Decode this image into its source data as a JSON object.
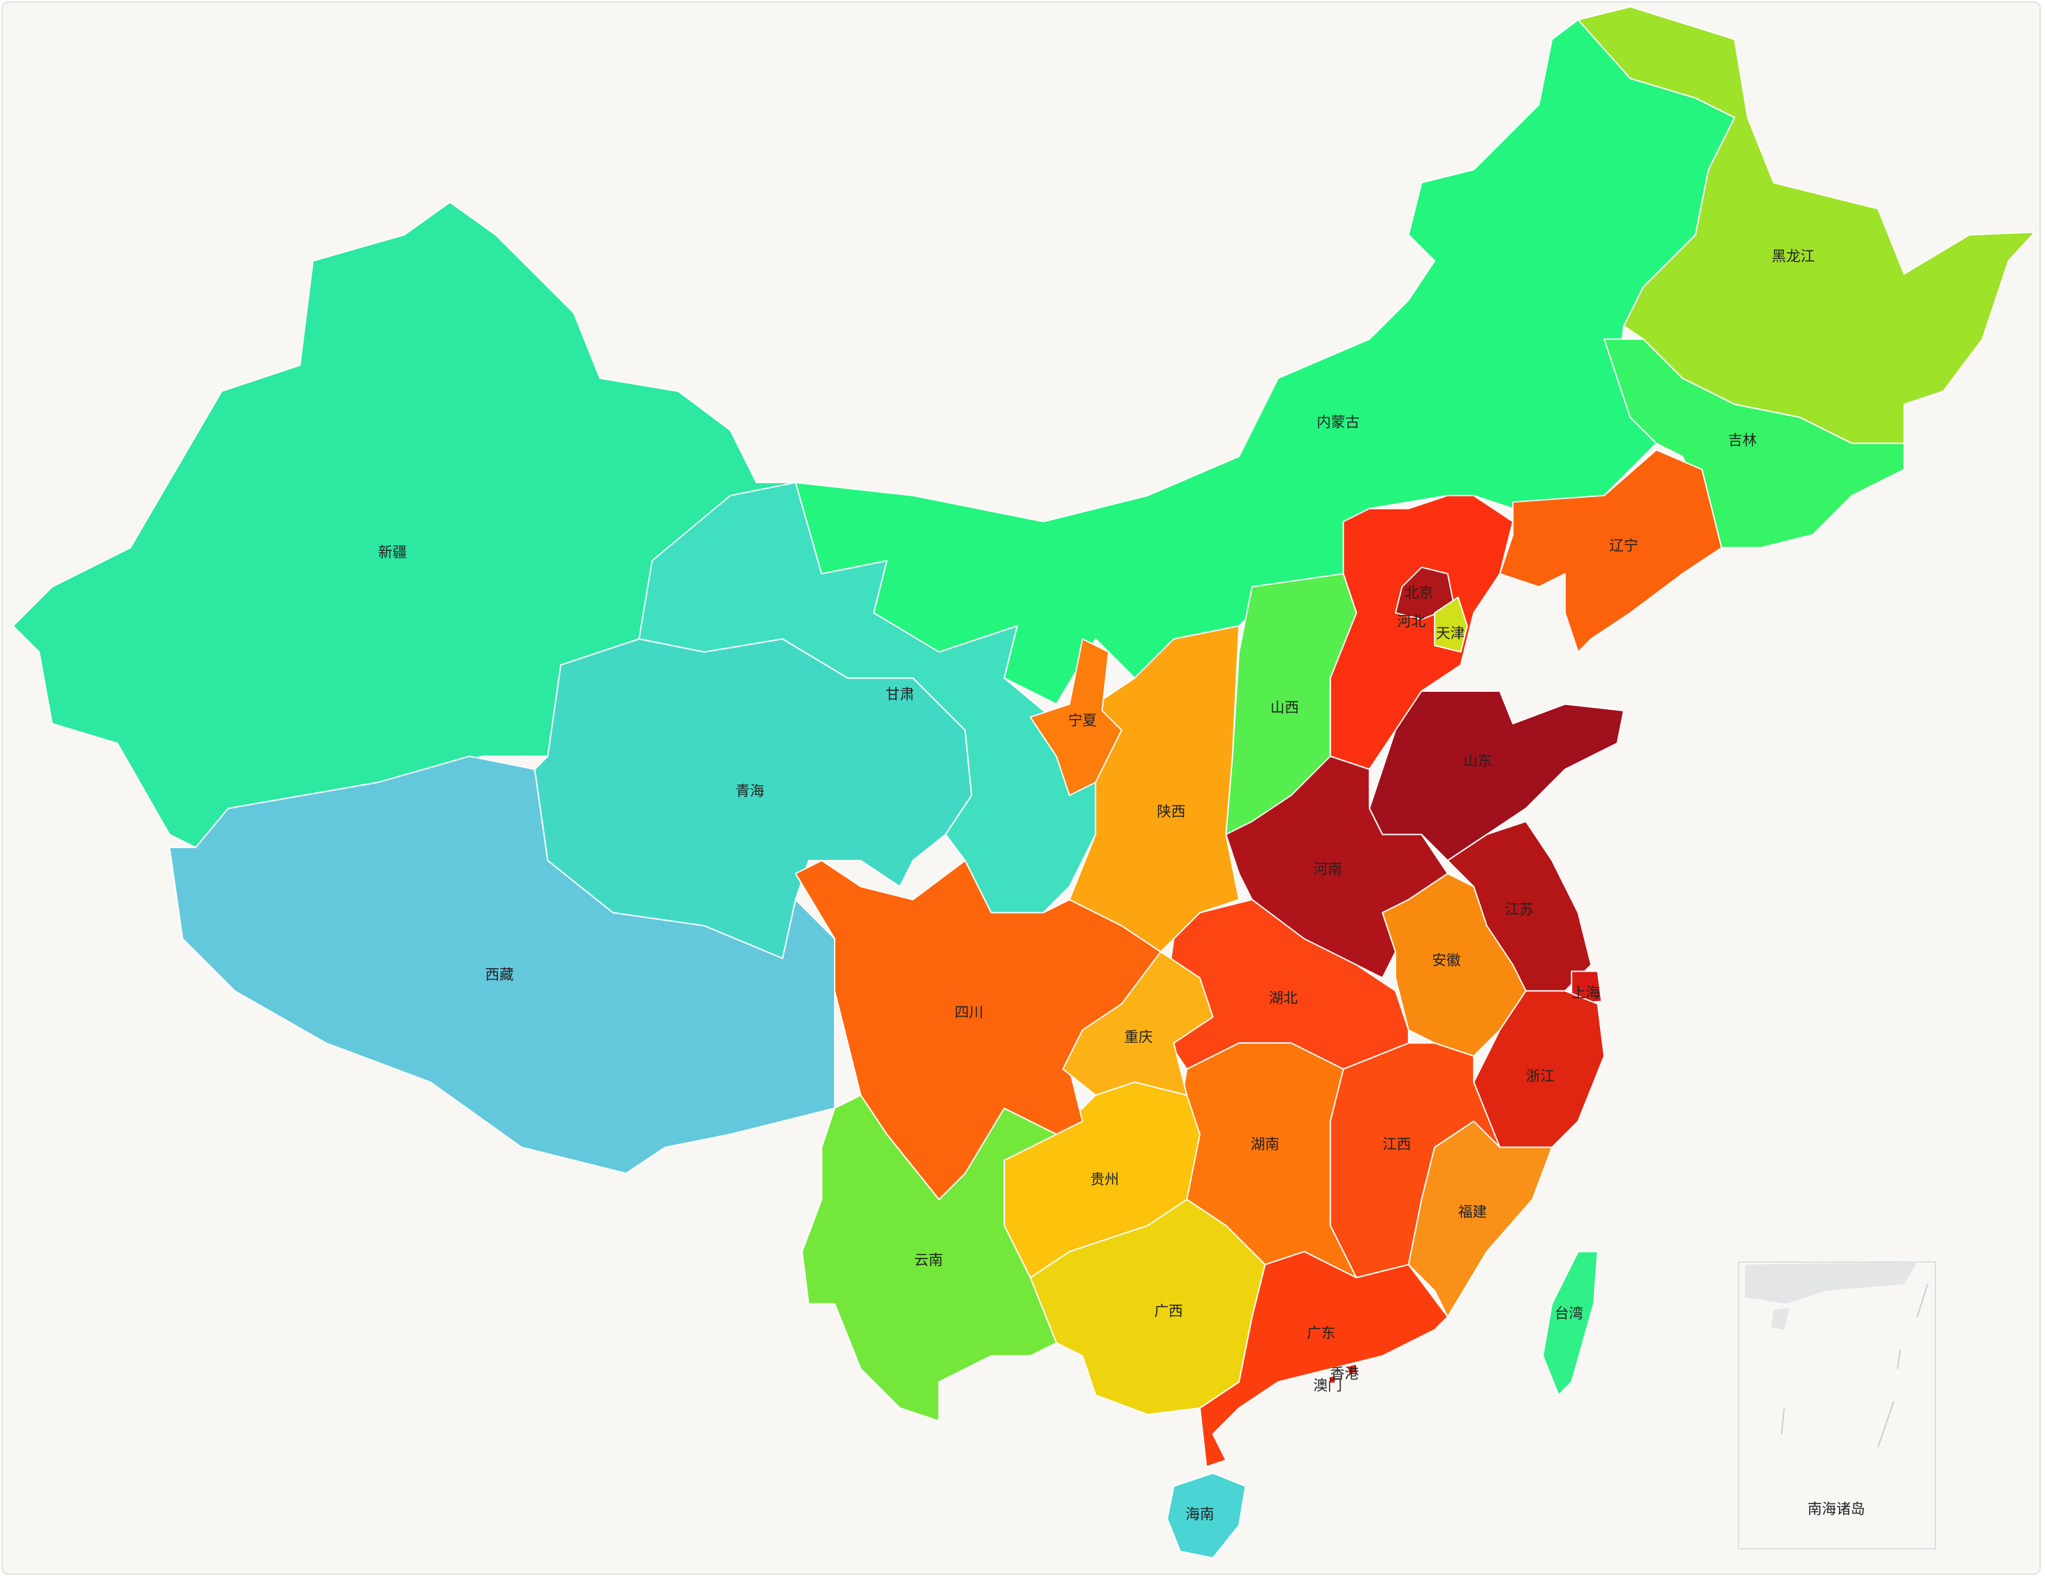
{
  "provinces": [
    {
      "name": "新疆",
      "color": "#2de8a0"
    },
    {
      "name": "西藏",
      "color": "#63c8dc"
    },
    {
      "name": "青海",
      "color": "#42d9c4"
    },
    {
      "name": "甘肃",
      "color": "#3fdfbf"
    },
    {
      "name": "内蒙古",
      "color": "#24f57e"
    },
    {
      "name": "黑龙江",
      "color": "#9fe22a"
    },
    {
      "name": "吉林",
      "color": "#35f466"
    },
    {
      "name": "辽宁",
      "color": "#fc620c"
    },
    {
      "name": "河北",
      "color": "#fb3010"
    },
    {
      "name": "山西",
      "color": "#55ee4e"
    },
    {
      "name": "北京",
      "color": "#b0171a"
    },
    {
      "name": "天津",
      "color": "#d0e01a"
    },
    {
      "name": "山东",
      "color": "#a0101d"
    },
    {
      "name": "河南",
      "color": "#ae1419"
    },
    {
      "name": "江苏",
      "color": "#b41516"
    },
    {
      "name": "上海",
      "color": "#d81a14"
    },
    {
      "name": "安徽",
      "color": "#f98a10"
    },
    {
      "name": "浙江",
      "color": "#e02510"
    },
    {
      "name": "江西",
      "color": "#fc4c0f"
    },
    {
      "name": "福建",
      "color": "#f99018"
    },
    {
      "name": "湖北",
      "color": "#fc4512"
    },
    {
      "name": "湖南",
      "color": "#fc760c"
    },
    {
      "name": "广东",
      "color": "#fc3e0e"
    },
    {
      "name": "广西",
      "color": "#eed40e"
    },
    {
      "name": "贵州",
      "color": "#fcc20c"
    },
    {
      "name": "云南",
      "color": "#73e83a"
    },
    {
      "name": "四川",
      "color": "#fc650c"
    },
    {
      "name": "重庆",
      "color": "#fcb116"
    },
    {
      "name": "陕西",
      "color": "#fca510"
    },
    {
      "name": "宁夏",
      "color": "#fc7c0c"
    },
    {
      "name": "台湾",
      "color": "#30f088"
    },
    {
      "name": "海南",
      "color": "#4ad4d4"
    },
    {
      "name": "香港",
      "color": "#e8200e"
    },
    {
      "name": "澳门",
      "color": "#e8200e"
    }
  ],
  "inset_label": "南海诸岛"
}
